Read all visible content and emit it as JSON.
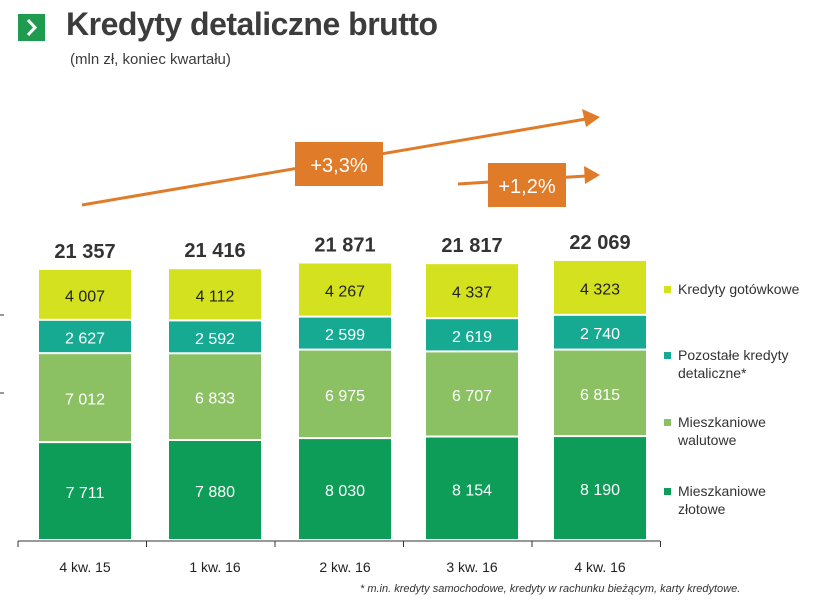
{
  "header": {
    "title": "Kredyty detaliczne brutto",
    "subtitle": "(mln zł, koniec kwartału)",
    "icon": "chevron-right-icon",
    "icon_color": "#1e9b4f"
  },
  "chart_data": {
    "type": "bar",
    "stacked": true,
    "categories": [
      "4 kw. 15",
      "1 kw. 16",
      "2 kw. 16",
      "3 kw. 16",
      "4 kw. 16"
    ],
    "series": [
      {
        "name": "Mieszkaniowe złotowe",
        "values": [
          7711,
          7880,
          8030,
          8154,
          8190
        ],
        "labels": [
          "7 711",
          "7 880",
          "8 030",
          "8 154",
          "8 190"
        ],
        "color": "#0e9d58"
      },
      {
        "name": "Mieszkaniowe walutowe",
        "values": [
          7012,
          6833,
          6975,
          6707,
          6815
        ],
        "labels": [
          "7 012",
          "6 833",
          "6 975",
          "6 707",
          "6 815"
        ],
        "color": "#8cc163"
      },
      {
        "name": "Pozostałe kredyty detaliczne*",
        "values": [
          2627,
          2592,
          2599,
          2619,
          2740
        ],
        "labels": [
          "2 627",
          "2 592",
          "2 599",
          "2 619",
          "2 740"
        ],
        "color": "#16aa93"
      },
      {
        "name": "Kredyty gotówkowe",
        "values": [
          4007,
          4112,
          4267,
          4337,
          4323
        ],
        "labels": [
          "4 007",
          "4 112",
          "4 267",
          "4 337",
          "4 323"
        ],
        "color": "#d4e11f"
      }
    ],
    "totals": [
      21357,
      21416,
      21871,
      21817,
      22069
    ],
    "total_labels": [
      "21 357",
      "21 416",
      "21 871",
      "21 817",
      "22 069"
    ],
    "annotations": [
      {
        "text": "+3,3%",
        "color": "#e07b2a"
      },
      {
        "text": "+1,2%",
        "color": "#e07b2a"
      }
    ],
    "legend_position": "right",
    "grid": false,
    "footnote": "* m.in. kredyty samochodowe, kredyty w rachunku bieżącym, karty kredytowe."
  }
}
